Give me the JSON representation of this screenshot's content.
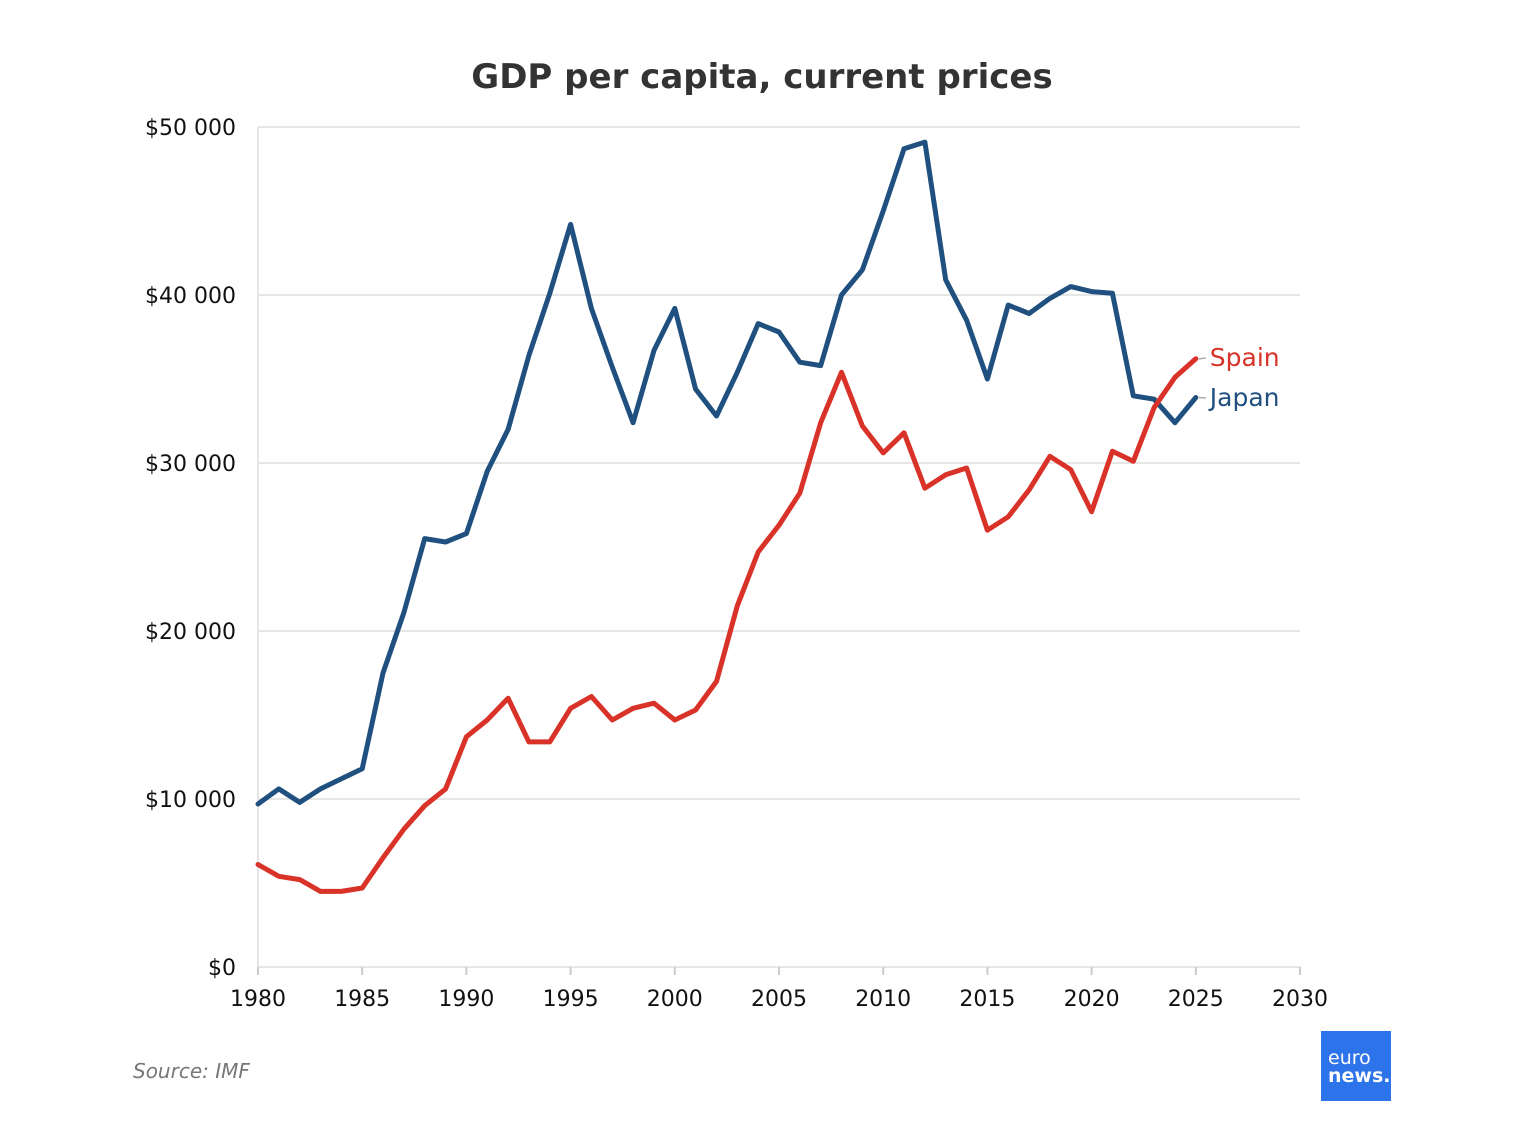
{
  "chart_data": {
    "type": "line",
    "title": "GDP per capita, current prices",
    "xlabel": "",
    "ylabel": "",
    "xlim": [
      1980,
      2030
    ],
    "ylim": [
      0,
      50000
    ],
    "x_ticks": [
      1980,
      1985,
      1990,
      1995,
      2000,
      2005,
      2010,
      2015,
      2020,
      2025,
      2030
    ],
    "x_tick_labels": [
      "1980",
      "1985",
      "1990",
      "1995",
      "2000",
      "2005",
      "2010",
      "2015",
      "2020",
      "2025",
      "2030"
    ],
    "y_ticks": [
      0,
      10000,
      20000,
      30000,
      40000,
      50000
    ],
    "y_tick_labels": [
      "$0",
      "$10 000",
      "$20 000",
      "$30 000",
      "$40 000",
      "$50 000"
    ],
    "grid": "horizontal",
    "legend": "direct labels at line ends",
    "x": [
      1980,
      1981,
      1982,
      1983,
      1984,
      1985,
      1986,
      1987,
      1988,
      1989,
      1990,
      1991,
      1992,
      1993,
      1994,
      1995,
      1996,
      1997,
      1998,
      1999,
      2000,
      2001,
      2002,
      2003,
      2004,
      2005,
      2006,
      2007,
      2008,
      2009,
      2010,
      2011,
      2012,
      2013,
      2014,
      2015,
      2016,
      2017,
      2018,
      2019,
      2020,
      2021,
      2022,
      2023,
      2024,
      2025
    ],
    "series": [
      {
        "name": "Japan",
        "color": "#20507f",
        "values": [
          9700,
          10600,
          9800,
          10600,
          11200,
          11800,
          17500,
          21100,
          25500,
          25300,
          25800,
          29500,
          32000,
          36400,
          40100,
          44200,
          39200,
          35700,
          32400,
          36700,
          39200,
          34400,
          32800,
          35400,
          38300,
          37800,
          36000,
          35800,
          40000,
          41500,
          45000,
          48700,
          49100,
          40900,
          38500,
          35000,
          39400,
          38900,
          39800,
          40500,
          40200,
          40100,
          34000,
          33800,
          32400,
          33900
        ]
      },
      {
        "name": "Spain",
        "color": "#d93228",
        "values": [
          6100,
          5400,
          5200,
          4500,
          4500,
          4700,
          6500,
          8200,
          9600,
          10600,
          13700,
          14700,
          16000,
          13400,
          13400,
          15400,
          16100,
          14700,
          15400,
          15700,
          14700,
          15300,
          17000,
          21500,
          24700,
          26300,
          28200,
          32400,
          35400,
          32200,
          30600,
          31800,
          28500,
          29300,
          29700,
          26000,
          26800,
          28400,
          30400,
          29600,
          27100,
          30700,
          30100,
          33300,
          35100,
          36200
        ]
      }
    ]
  },
  "source": "Source: IMF",
  "logo": {
    "line1": "euro",
    "line2": "news.",
    "bg_color": "#2d73ea"
  }
}
